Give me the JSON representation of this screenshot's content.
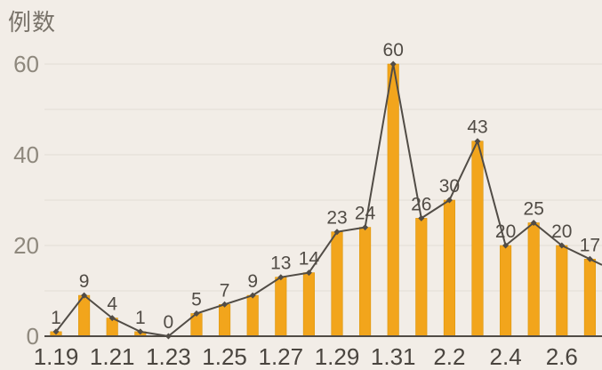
{
  "chart_data": {
    "type": "bar+line",
    "title": "",
    "ylabel": "例数",
    "xlabel": "",
    "categories": [
      "1.19",
      "1.20",
      "1.21",
      "1.22",
      "1.23",
      "1.24",
      "1.25",
      "1.26",
      "1.27",
      "1.28",
      "1.29",
      "1.30",
      "1.31",
      "2.1",
      "2.2",
      "2.3",
      "2.4",
      "2.5",
      "2.6",
      "2.7"
    ],
    "values": [
      1,
      9,
      4,
      1,
      0,
      5,
      7,
      9,
      13,
      14,
      23,
      24,
      60,
      26,
      30,
      43,
      20,
      25,
      20,
      17
    ],
    "data_labels": [
      "1",
      "9",
      "4",
      "1",
      "0",
      "5",
      "7",
      "9",
      "13",
      "14",
      "23",
      "24",
      "60",
      "26",
      "30",
      "43",
      "20",
      "25",
      "20",
      "17"
    ],
    "line_overlay": true,
    "x_tick_labels": [
      "1.19",
      "1.21",
      "1.23",
      "1.25",
      "1.27",
      "1.29",
      "1.31",
      "2.2",
      "2.4",
      "2.6"
    ],
    "x_tick_every": 2,
    "y_ticks": [
      0,
      20,
      40,
      60
    ],
    "ylim": [
      0,
      60
    ],
    "grid_interval": 10,
    "grid_on": true,
    "legend_position": "none",
    "colors": {
      "background": "#F2EDE7",
      "bar": "#F2A51C",
      "bar_border": "#DC9508",
      "line": "#514C46",
      "marker": "#514C46",
      "grid": "#E3DDD5",
      "axis": "#514C46",
      "data_label": "#514C46",
      "y_tick_label": "#8E887D",
      "x_tick_label": "#4A453F",
      "y_axis_title": "#79736A"
    }
  }
}
